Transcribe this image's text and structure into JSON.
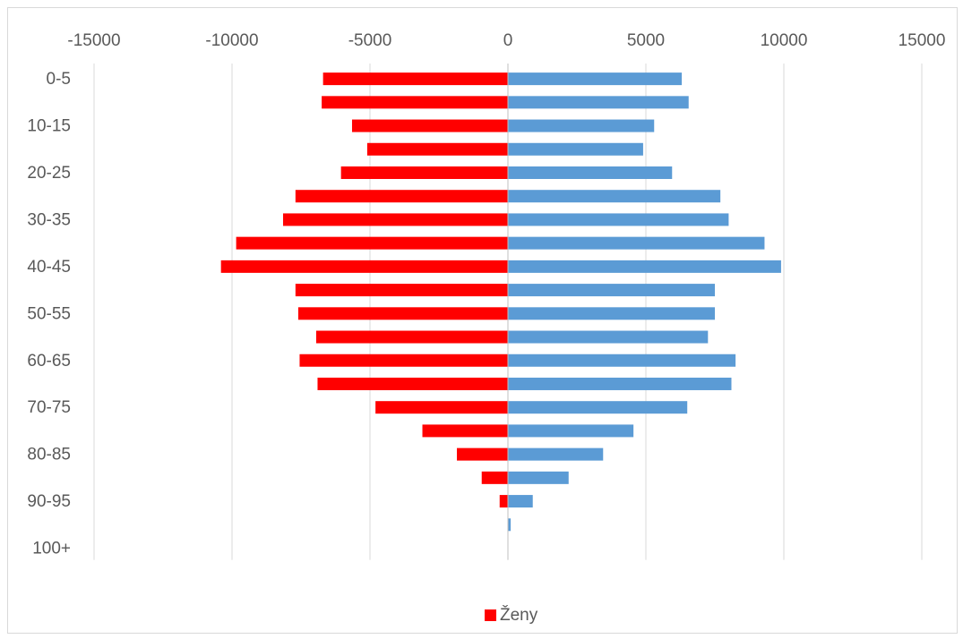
{
  "chart_data": {
    "type": "bar",
    "orientation": "horizontal",
    "title": "",
    "xlabel": "",
    "ylabel": "",
    "xlim": [
      -15000,
      15000
    ],
    "x_ticks": [
      -15000,
      -10000,
      -5000,
      0,
      5000,
      10000,
      15000
    ],
    "x_tick_labels": [
      "-15000",
      "-10000",
      "-5000",
      "0",
      "5000",
      "10000",
      "15000"
    ],
    "x_axis_position": "top",
    "grid": "vertical",
    "categories": [
      "0-5",
      "5-10",
      "10-15",
      "15-20",
      "20-25",
      "25-30",
      "30-35",
      "35-40",
      "40-45",
      "45-50",
      "50-55",
      "55-60",
      "60-65",
      "65-70",
      "70-75",
      "75-80",
      "80-85",
      "85-90",
      "90-95",
      "95-100",
      "100+"
    ],
    "category_labels_shown": [
      "0-5",
      "",
      "10-15",
      "",
      "20-25",
      "",
      "30-35",
      "",
      "40-45",
      "",
      "50-55",
      "",
      "60-65",
      "",
      "70-75",
      "",
      "80-85",
      "",
      "90-95",
      "",
      "100+"
    ],
    "series": [
      {
        "name": "Ženy",
        "color": "#ff0000",
        "values": [
          -6700,
          -6750,
          -5650,
          -5100,
          -6050,
          -7700,
          -8150,
          -9850,
          -10400,
          -7700,
          -7600,
          -6950,
          -7550,
          -6900,
          -4800,
          -3100,
          -1850,
          -950,
          -300,
          0,
          0
        ]
      },
      {
        "color": "#5b9bd5",
        "values": [
          6300,
          6550,
          5300,
          4900,
          5950,
          7700,
          8000,
          9300,
          9900,
          7500,
          7500,
          7250,
          8250,
          8100,
          6500,
          4550,
          3450,
          2200,
          900,
          100,
          0
        ]
      }
    ],
    "legend": {
      "position": "bottom",
      "entries": [
        "Ženy"
      ]
    }
  }
}
